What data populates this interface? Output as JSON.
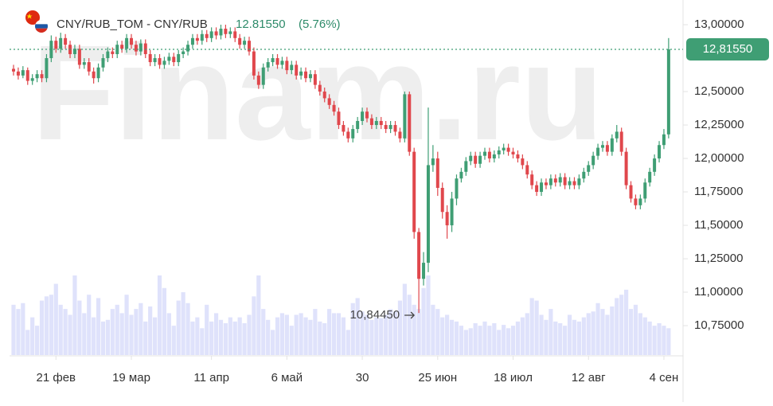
{
  "chart_data": {
    "type": "candlestick",
    "title": "CNY/RUB_TOM - CNY/RUB",
    "last_price": "12.81550",
    "change": "(5.76%)",
    "watermark": "Finam.ru",
    "current": {
      "value": 12.8155,
      "label": "12,81550"
    },
    "min_marker": {
      "value": 10.8445,
      "label": "10,84450",
      "index": 86
    },
    "up_color": "#3f9e74",
    "down_color": "#e0474c",
    "volume_color": "#dfe2fb",
    "ylim": [
      10.536,
      13.137
    ],
    "yticks": [
      {
        "value": 13.0,
        "label": "13,00000"
      },
      {
        "value": 12.5,
        "label": "12,50000"
      },
      {
        "value": 12.25,
        "label": "12,25000"
      },
      {
        "value": 12.0,
        "label": "12,00000"
      },
      {
        "value": 11.75,
        "label": "11,75000"
      },
      {
        "value": 11.5,
        "label": "11,50000"
      },
      {
        "value": 11.25,
        "label": "11,25000"
      },
      {
        "value": 11.0,
        "label": "11,00000"
      },
      {
        "value": 10.75,
        "label": "10,75000"
      }
    ],
    "xticks": [
      {
        "value": 9,
        "label": "21 фев"
      },
      {
        "value": 25,
        "label": "19 мар"
      },
      {
        "value": 42,
        "label": "11 апр"
      },
      {
        "value": 58,
        "label": "6 май"
      },
      {
        "value": 74,
        "label": "30"
      },
      {
        "value": 90,
        "label": "25 июн"
      },
      {
        "value": 106,
        "label": "18 июл"
      },
      {
        "value": 122,
        "label": "12 авг"
      },
      {
        "value": 138,
        "label": "4 сен"
      }
    ],
    "candles": [
      [
        12.67,
        12.7,
        12.62,
        12.65
      ],
      [
        12.65,
        12.68,
        12.59,
        12.62
      ],
      [
        12.62,
        12.69,
        12.6,
        12.66
      ],
      [
        12.66,
        12.68,
        12.55,
        12.58
      ],
      [
        12.58,
        12.63,
        12.55,
        12.6
      ],
      [
        12.6,
        12.66,
        12.57,
        12.63
      ],
      [
        12.63,
        12.66,
        12.57,
        12.6
      ],
      [
        12.6,
        12.78,
        12.57,
        12.75
      ],
      [
        12.75,
        12.92,
        12.72,
        12.88
      ],
      [
        12.88,
        12.91,
        12.79,
        12.82
      ],
      [
        12.82,
        12.94,
        12.79,
        12.9
      ],
      [
        12.9,
        12.93,
        12.82,
        12.85
      ],
      [
        12.85,
        12.88,
        12.75,
        12.78
      ],
      [
        12.78,
        12.85,
        12.75,
        12.82
      ],
      [
        12.82,
        12.85,
        12.67,
        12.7
      ],
      [
        12.7,
        12.75,
        12.67,
        12.72
      ],
      [
        12.72,
        12.75,
        12.62,
        12.65
      ],
      [
        12.65,
        12.68,
        12.56,
        12.6
      ],
      [
        12.6,
        12.71,
        12.57,
        12.68
      ],
      [
        12.68,
        12.78,
        12.65,
        12.75
      ],
      [
        12.75,
        12.83,
        12.72,
        12.8
      ],
      [
        12.8,
        12.83,
        12.75,
        12.78
      ],
      [
        12.78,
        12.88,
        12.75,
        12.85
      ],
      [
        12.85,
        12.88,
        12.79,
        12.82
      ],
      [
        12.82,
        12.93,
        12.79,
        12.9
      ],
      [
        12.9,
        12.93,
        12.82,
        12.85
      ],
      [
        12.85,
        12.88,
        12.77,
        12.8
      ],
      [
        12.8,
        12.89,
        12.77,
        12.86
      ],
      [
        12.86,
        12.89,
        12.75,
        12.78
      ],
      [
        12.78,
        12.81,
        12.69,
        12.72
      ],
      [
        12.72,
        12.78,
        12.69,
        12.75
      ],
      [
        12.75,
        12.78,
        12.67,
        12.7
      ],
      [
        12.7,
        12.76,
        12.67,
        12.73
      ],
      [
        12.73,
        12.79,
        12.7,
        12.76
      ],
      [
        12.76,
        12.79,
        12.69,
        12.72
      ],
      [
        12.72,
        12.81,
        12.69,
        12.78
      ],
      [
        12.78,
        12.83,
        12.75,
        12.8
      ],
      [
        12.8,
        12.88,
        12.77,
        12.85
      ],
      [
        12.85,
        12.93,
        12.82,
        12.9
      ],
      [
        12.9,
        12.93,
        12.85,
        12.88
      ],
      [
        12.88,
        12.96,
        12.85,
        12.93
      ],
      [
        12.93,
        12.96,
        12.87,
        12.9
      ],
      [
        12.9,
        12.98,
        12.87,
        12.95
      ],
      [
        12.95,
        12.98,
        12.89,
        12.92
      ],
      [
        12.92,
        13.0,
        12.89,
        12.97
      ],
      [
        12.97,
        13.0,
        12.9,
        12.93
      ],
      [
        12.93,
        12.98,
        12.9,
        12.95
      ],
      [
        12.95,
        12.98,
        12.87,
        12.9
      ],
      [
        12.9,
        12.93,
        12.82,
        12.85
      ],
      [
        12.85,
        12.91,
        12.82,
        12.88
      ],
      [
        12.88,
        12.91,
        12.77,
        12.8
      ],
      [
        12.8,
        12.83,
        12.59,
        12.62
      ],
      [
        12.62,
        12.65,
        12.52,
        12.55
      ],
      [
        12.55,
        12.71,
        12.52,
        12.68
      ],
      [
        12.68,
        12.75,
        12.65,
        12.72
      ],
      [
        12.72,
        12.78,
        12.69,
        12.75
      ],
      [
        12.75,
        12.78,
        12.67,
        12.7
      ],
      [
        12.7,
        12.76,
        12.67,
        12.73
      ],
      [
        12.73,
        12.76,
        12.63,
        12.66
      ],
      [
        12.66,
        12.73,
        12.63,
        12.7
      ],
      [
        12.7,
        12.73,
        12.59,
        12.62
      ],
      [
        12.62,
        12.68,
        12.59,
        12.65
      ],
      [
        12.65,
        12.68,
        12.57,
        12.6
      ],
      [
        12.6,
        12.66,
        12.57,
        12.63
      ],
      [
        12.63,
        12.66,
        12.52,
        12.55
      ],
      [
        12.55,
        12.58,
        12.47,
        12.5
      ],
      [
        12.5,
        12.53,
        12.42,
        12.45
      ],
      [
        12.45,
        12.48,
        12.37,
        12.4
      ],
      [
        12.4,
        12.43,
        12.32,
        12.35
      ],
      [
        12.35,
        12.38,
        12.22,
        12.25
      ],
      [
        12.25,
        12.28,
        12.17,
        12.2
      ],
      [
        12.2,
        12.23,
        12.12,
        12.15
      ],
      [
        12.15,
        12.25,
        12.12,
        12.22
      ],
      [
        12.22,
        12.31,
        12.19,
        12.28
      ],
      [
        12.28,
        12.38,
        12.25,
        12.35
      ],
      [
        12.35,
        12.38,
        12.27,
        12.3
      ],
      [
        12.3,
        12.33,
        12.22,
        12.25
      ],
      [
        12.25,
        12.31,
        12.22,
        12.28
      ],
      [
        12.28,
        12.31,
        12.22,
        12.25
      ],
      [
        12.25,
        12.28,
        12.19,
        12.22
      ],
      [
        12.22,
        12.28,
        12.19,
        12.25
      ],
      [
        12.25,
        12.28,
        12.17,
        12.2
      ],
      [
        12.2,
        12.23,
        12.12,
        12.15
      ],
      [
        12.15,
        12.5,
        12.12,
        12.48
      ],
      [
        12.48,
        12.5,
        12.02,
        12.05
      ],
      [
        12.05,
        12.08,
        11.4,
        11.45
      ],
      [
        11.45,
        11.48,
        10.8445,
        11.1
      ],
      [
        11.1,
        11.3,
        11.05,
        11.22
      ],
      [
        11.22,
        12.38,
        11.15,
        11.95
      ],
      [
        11.95,
        12.1,
        11.9,
        12.0
      ],
      [
        12.0,
        12.05,
        11.72,
        11.78
      ],
      [
        11.78,
        11.82,
        11.55,
        11.6
      ],
      [
        11.6,
        11.65,
        11.4,
        11.5
      ],
      [
        11.5,
        11.75,
        11.45,
        11.7
      ],
      [
        11.7,
        11.88,
        11.65,
        11.85
      ],
      [
        11.85,
        11.93,
        11.82,
        11.9
      ],
      [
        11.9,
        12.01,
        11.87,
        11.98
      ],
      [
        11.98,
        12.05,
        11.95,
        12.02
      ],
      [
        12.02,
        12.05,
        11.93,
        11.96
      ],
      [
        11.96,
        12.05,
        11.93,
        12.02
      ],
      [
        12.02,
        12.08,
        11.99,
        12.05
      ],
      [
        12.05,
        12.08,
        11.97,
        12.0
      ],
      [
        12.0,
        12.06,
        11.97,
        12.03
      ],
      [
        12.03,
        12.09,
        12.0,
        12.06
      ],
      [
        12.06,
        12.11,
        12.03,
        12.08
      ],
      [
        12.08,
        12.11,
        12.02,
        12.05
      ],
      [
        12.05,
        12.08,
        12.0,
        12.03
      ],
      [
        12.03,
        12.06,
        11.97,
        12.0
      ],
      [
        12.0,
        12.03,
        11.92,
        11.95
      ],
      [
        11.95,
        11.98,
        11.85,
        11.88
      ],
      [
        11.88,
        11.91,
        11.77,
        11.8
      ],
      [
        11.8,
        11.83,
        11.72,
        11.75
      ],
      [
        11.75,
        11.85,
        11.72,
        11.82
      ],
      [
        11.82,
        11.85,
        11.77,
        11.8
      ],
      [
        11.8,
        11.88,
        11.77,
        11.85
      ],
      [
        11.85,
        11.88,
        11.79,
        11.82
      ],
      [
        11.82,
        11.89,
        11.79,
        11.86
      ],
      [
        11.86,
        11.89,
        11.77,
        11.8
      ],
      [
        11.8,
        11.86,
        11.77,
        11.83
      ],
      [
        11.83,
        11.86,
        11.77,
        11.8
      ],
      [
        11.8,
        11.88,
        11.77,
        11.85
      ],
      [
        11.85,
        11.93,
        11.82,
        11.9
      ],
      [
        11.9,
        11.98,
        11.87,
        11.95
      ],
      [
        11.95,
        12.05,
        11.92,
        12.02
      ],
      [
        12.02,
        12.11,
        11.99,
        12.08
      ],
      [
        12.08,
        12.13,
        12.05,
        12.1
      ],
      [
        12.1,
        12.13,
        12.02,
        12.05
      ],
      [
        12.05,
        12.18,
        12.02,
        12.15
      ],
      [
        12.15,
        12.25,
        12.12,
        12.2
      ],
      [
        12.2,
        12.23,
        12.02,
        12.05
      ],
      [
        12.05,
        12.08,
        11.77,
        11.8
      ],
      [
        11.8,
        11.83,
        11.67,
        11.7
      ],
      [
        11.7,
        11.73,
        11.62,
        11.65
      ],
      [
        11.65,
        11.73,
        11.62,
        11.7
      ],
      [
        11.7,
        11.85,
        11.67,
        11.82
      ],
      [
        11.82,
        11.93,
        11.79,
        11.9
      ],
      [
        11.9,
        12.03,
        11.87,
        12.0
      ],
      [
        12.0,
        12.13,
        11.97,
        12.1
      ],
      [
        12.1,
        12.22,
        12.07,
        12.18
      ],
      [
        12.18,
        12.9,
        12.15,
        12.8155
      ]
    ],
    "volume": [
      60,
      55,
      62,
      30,
      45,
      35,
      65,
      70,
      72,
      85,
      60,
      55,
      48,
      95,
      65,
      50,
      72,
      45,
      68,
      40,
      42,
      55,
      60,
      50,
      72,
      48,
      55,
      62,
      40,
      58,
      45,
      95,
      80,
      50,
      35,
      65,
      75,
      62,
      40,
      45,
      32,
      60,
      40,
      50,
      42,
      38,
      45,
      40,
      45,
      38,
      48,
      70,
      95,
      55,
      42,
      30,
      45,
      50,
      48,
      35,
      48,
      50,
      45,
      42,
      55,
      40,
      38,
      55,
      50,
      50,
      45,
      30,
      62,
      68,
      52,
      48,
      42,
      45,
      44,
      48,
      55,
      52,
      65,
      85,
      72,
      60,
      55,
      80,
      95,
      60,
      55,
      45,
      48,
      42,
      40,
      35,
      30,
      32,
      38,
      35,
      40,
      35,
      38,
      30,
      36,
      32,
      35,
      40,
      45,
      50,
      68,
      65,
      48,
      42,
      55,
      40,
      38,
      35,
      48,
      42,
      40,
      45,
      50,
      52,
      62,
      55,
      48,
      58,
      68,
      72,
      78,
      55,
      60,
      50,
      45,
      40,
      35,
      38,
      35,
      32
    ]
  }
}
